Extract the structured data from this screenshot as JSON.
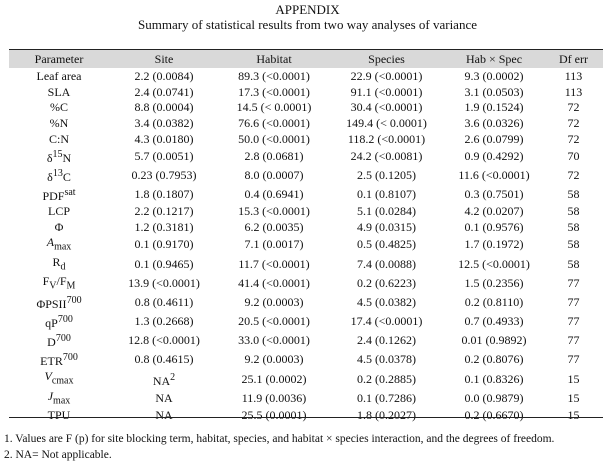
{
  "document": {
    "title": "APPENDIX",
    "subtitle": "Summary of statistical results from two way analyses of variance"
  },
  "table": {
    "headers": [
      "Parameter",
      "Site",
      "Habitat",
      "Species",
      "Hab × Spec",
      "Df err"
    ],
    "rows": [
      {
        "param": {
          "base": "Leaf area"
        },
        "site": "2.2 (0.0084)",
        "habitat": "89.3 (<0.0001)",
        "species": "22.9 (<0.0001)",
        "habspec": "9.3 (0.0002)",
        "dferr": "113"
      },
      {
        "param": {
          "base": "SLA"
        },
        "site": "2.4 (0.0741)",
        "habitat": "17.3 (<0.0001)",
        "species": "91.1 (<0.0001)",
        "habspec": "3.1 (0.0503)",
        "dferr": "113"
      },
      {
        "param": {
          "base": "%C"
        },
        "site": "8.8 (0.0004)",
        "habitat": "14.5 (< 0.0001)",
        "species": "30.4 (<0.0001)",
        "habspec": "1.9 (0.1524)",
        "dferr": "72"
      },
      {
        "param": {
          "base": "%N"
        },
        "site": "3.4 (0.0382)",
        "habitat": "76.6 (<0.0001)",
        "species": "149.4 (< 0.0001)",
        "habspec": "3.6 (0.0326)",
        "dferr": "72"
      },
      {
        "param": {
          "base": "C:N"
        },
        "site": "4.3 (0.0180)",
        "habitat": "50.0 (<0.0001)",
        "species": "118.2 (<0.0001)",
        "habspec": "2.6 (0.0799)",
        "dferr": "72"
      },
      {
        "param": {
          "pre": "δ",
          "presup": "15",
          "base": "N"
        },
        "site": "5.7 (0.0051)",
        "habitat": "2.8 (0.0681)",
        "species": "24.2 (<0.0081)",
        "habspec": "0.9 (0.4292)",
        "dferr": "70"
      },
      {
        "param": {
          "pre": "δ",
          "presup": "13",
          "base": "C"
        },
        "site": "0.23 (0.7953)",
        "habitat": "8.0 (0.0007)",
        "species": "2.5 (0.1205)",
        "habspec": "11.6 (<0.0001)",
        "dferr": "72"
      },
      {
        "param": {
          "base": "PDF",
          "sup": "sat"
        },
        "site": "1.8 (0.1807)",
        "habitat": "0.4 (0.6941)",
        "species": "0.1 (0.8107)",
        "habspec": "0.3 (0.7501)",
        "dferr": "58"
      },
      {
        "param": {
          "base": "LCP"
        },
        "site": "2.2 (0.1217)",
        "habitat": "15.3 (<0.0001)",
        "species": "5.1 (0.0284)",
        "habspec": "4.2 (0.0207)",
        "dferr": "58"
      },
      {
        "param": {
          "base": "Φ"
        },
        "site": "1.2 (0.3181)",
        "habitat": "6.2 (0.0035)",
        "species": "4.9 (0.0315)",
        "habspec": "0.1 (0.9576)",
        "dferr": "58"
      },
      {
        "param": {
          "base": "A",
          "sub": "max",
          "italic": true
        },
        "site": "0.1 (0.9170)",
        "habitat": "7.1 (0.0017)",
        "species": "0.5 (0.4825)",
        "habspec": "1.7 (0.1972)",
        "dferr": "58"
      },
      {
        "param": {
          "base": "R",
          "sub": "d"
        },
        "site": "0.1 (0.9465)",
        "habitat": "11.7 (<0.0001)",
        "species": "7.4 (0.0088)",
        "habspec": "12.5 (<0.0001)",
        "dferr": "58"
      },
      {
        "param": {
          "base": "F",
          "sub": "V",
          "mid": "/F",
          "sub2": "M"
        },
        "site": "13.9 (<0.0001)",
        "habitat": "41.4 (<0.0001)",
        "species": "0.2 (0.6223)",
        "habspec": "1.5 (0.2356)",
        "dferr": "77"
      },
      {
        "param": {
          "base": "ΦPSII",
          "sup": "700"
        },
        "site": "0.8 (0.4611)",
        "habitat": "9.2 (0.0003)",
        "species": "4.5 (0.0382)",
        "habspec": "0.2 (0.8110)",
        "dferr": "77"
      },
      {
        "param": {
          "base": "qP",
          "sup": "700"
        },
        "site": "1.3 (0.2668)",
        "habitat": "20.5 (<0.0001)",
        "species": "17.4 (<0.0001)",
        "habspec": "0.7 (0.4933)",
        "dferr": "77"
      },
      {
        "param": {
          "base": "D",
          "sup": "700"
        },
        "site": "12.8 (<0.0001)",
        "habitat": "33.0 (<0.0001)",
        "species": "2.4 (0.1262)",
        "habspec": "0.01 (0.9892)",
        "dferr": "77"
      },
      {
        "param": {
          "base": "ETR",
          "sup": "700"
        },
        "site": "0.8 (0.4615)",
        "habitat": "9.2 (0.0003)",
        "species": "4.5 (0.0378)",
        "habspec": "0.2 (0.8076)",
        "dferr": "77"
      },
      {
        "param": {
          "base": "V",
          "sub": "cmax",
          "italic": true
        },
        "site": "NA",
        "siteSup": "2",
        "habitat": "25.1 (0.0002)",
        "species": "0.2 (0.2885)",
        "habspec": "0.1 (0.8326)",
        "dferr": "15"
      },
      {
        "param": {
          "base": "J",
          "sub": "max",
          "italic": true
        },
        "site": "NA",
        "habitat": "11.9 (0.0036)",
        "species": "0.1 (0.7286)",
        "habspec": "0.0 (0.9879)",
        "dferr": "15"
      },
      {
        "param": {
          "base": "TPU"
        },
        "site": "NA",
        "habitat": "25.5 (0.0001)",
        "species": "1.8 (0.2027)",
        "habspec": "0.2 (0.6670)",
        "dferr": "15"
      }
    ]
  },
  "footnotes": [
    "1.   Values are F (p) for site blocking term, habitat, species, and habitat × species interaction, and the degrees of freedom.",
    "2.   NA= Not applicable."
  ]
}
